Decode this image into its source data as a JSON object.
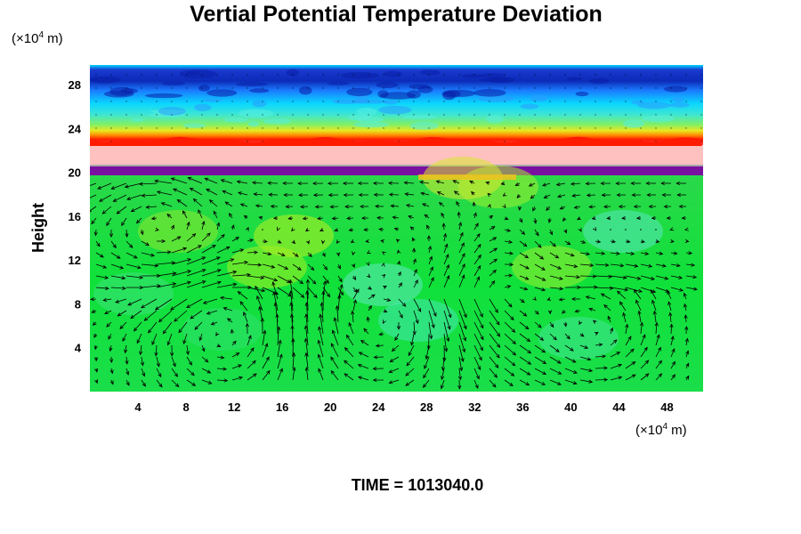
{
  "chart_data": {
    "type": "heatmap",
    "title": "Vertial Potential Temperature Deviation",
    "ylabel": "Height",
    "x_unit": {
      "prefix": "(×10",
      "exp": "4",
      "suffix": " m)"
    },
    "y_unit": {
      "prefix": "(×10",
      "exp": "4",
      "suffix": " m)"
    },
    "x_ticks": [
      4,
      8,
      12,
      16,
      20,
      24,
      28,
      32,
      36,
      40,
      44,
      48
    ],
    "y_ticks": [
      4,
      8,
      12,
      16,
      20,
      24,
      28
    ],
    "xlim": [
      0,
      51
    ],
    "ylim": [
      0,
      29.8
    ],
    "grid": false,
    "vectors": "wind arrows overlay",
    "colormap": [
      "#1232c8",
      "#0a78ff",
      "#00d2ff",
      "#5ee8c0",
      "#22e84a",
      "#ff1a00",
      "#ffc0c0",
      "#7a10a0"
    ],
    "time_label": "TIME = 1013040.0"
  }
}
